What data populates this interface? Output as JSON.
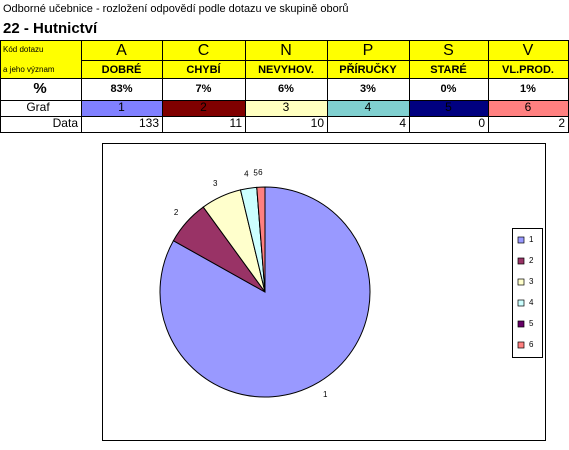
{
  "header": {
    "subtitle": "Odborné učebnice - rozložení odpovědí podle dotazu ve skupině oborů",
    "title": "22 - Hutnictví"
  },
  "table": {
    "code_label": "Kód dotazu",
    "meaning_label": "a jeho význam",
    "codes": [
      "A",
      "C",
      "N",
      "P",
      "S",
      "V"
    ],
    "meanings": [
      "DOBRÉ",
      "CHYBÍ",
      "NEVYHOV.",
      "PŘÍRUČKY",
      "STARÉ",
      "VL.PROD."
    ],
    "percent_label": "%",
    "percents": [
      "83%",
      "7%",
      "6%",
      "3%",
      "0%",
      "1%"
    ],
    "graf_label": "Graf",
    "graf_colors": [
      "#8080ff",
      "#800000",
      "#ffffc0",
      "#80d0d0",
      "#000080",
      "#ff8080"
    ],
    "data_label": "Data"
  },
  "chart_data": {
    "type": "pie",
    "categories": [
      "1",
      "2",
      "3",
      "4",
      "5",
      "6"
    ],
    "values": [
      133,
      11,
      10,
      4,
      0,
      2
    ],
    "colors": [
      "#9999ff",
      "#993366",
      "#ffffcc",
      "#ccffff",
      "#660066",
      "#ff8080"
    ],
    "legend": "right"
  }
}
